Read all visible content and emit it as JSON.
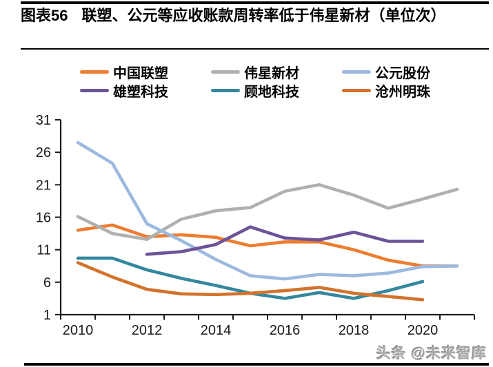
{
  "header": {
    "figure_label": "图表56",
    "title": "联塑、公元等应收账款周转率低于伟星新材（单位次）"
  },
  "footer": {
    "watermark": "头条 @未来智库"
  },
  "chart_data": {
    "type": "line",
    "title": "联塑、公元等应收账款周转率低于伟星新材（单位：次）",
    "xlabel": "",
    "ylabel": "",
    "categories": [
      2010,
      2011,
      2012,
      2013,
      2014,
      2015,
      2016,
      2017,
      2018,
      2019,
      2020,
      2021
    ],
    "x_tick_labels": [
      "2010",
      "2012",
      "2014",
      "2016",
      "2018",
      "2020"
    ],
    "y_ticks": [
      1,
      6,
      11,
      16,
      21,
      26,
      31
    ],
    "ylim": [
      1,
      31
    ],
    "grid": false,
    "legend_position": "top",
    "axis_color": "#1a1a1a",
    "series": [
      {
        "name": "中国联塑",
        "color": "#ED7D31",
        "values": [
          14.0,
          14.8,
          13.0,
          13.3,
          12.9,
          11.6,
          12.2,
          12.2,
          11.0,
          9.4,
          8.5,
          8.5
        ]
      },
      {
        "name": "伟星新材",
        "color": "#B0B0B0",
        "values": [
          16.1,
          13.5,
          12.6,
          15.7,
          17.0,
          17.5,
          20.0,
          21.0,
          19.4,
          17.4,
          18.8,
          20.3
        ]
      },
      {
        "name": "公元股份",
        "color": "#9CB9DF",
        "values": [
          27.5,
          24.3,
          15.0,
          12.4,
          9.5,
          7.0,
          6.5,
          7.2,
          7.0,
          7.4,
          8.4,
          8.5
        ]
      },
      {
        "name": "雄塑科技",
        "color": "#6E5398",
        "values": [
          null,
          null,
          10.3,
          10.7,
          11.8,
          14.5,
          12.8,
          12.5,
          13.7,
          12.3,
          12.3,
          null
        ]
      },
      {
        "name": "顾地科技",
        "color": "#35889E",
        "values": [
          9.7,
          9.7,
          7.9,
          6.6,
          5.5,
          4.3,
          3.5,
          4.4,
          3.5,
          4.7,
          6.1,
          null
        ]
      },
      {
        "name": "沧州明珠",
        "color": "#D2732D",
        "values": [
          9.0,
          6.8,
          4.9,
          4.2,
          4.1,
          4.3,
          4.7,
          5.2,
          4.3,
          3.8,
          3.3,
          null
        ]
      }
    ]
  }
}
